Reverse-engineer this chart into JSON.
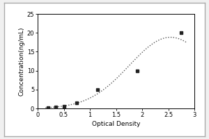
{
  "x_data": [
    0.2,
    0.35,
    0.5,
    0.75,
    1.15,
    1.9,
    2.75
  ],
  "y_data": [
    0.2,
    0.4,
    0.6,
    1.5,
    5.0,
    10.0,
    20.0
  ],
  "xlabel": "Optical Density",
  "ylabel": "Concentration(ng/mL)",
  "xlim": [
    0,
    3
  ],
  "ylim": [
    0,
    25
  ],
  "xticks": [
    0,
    0.5,
    1.0,
    1.5,
    2.0,
    2.5,
    3.0
  ],
  "yticks": [
    0,
    5,
    10,
    15,
    20,
    25
  ],
  "line_color": "#555555",
  "marker_color": "#222222",
  "outer_bg": "#e8e8e8",
  "plot_bg": "#ffffff",
  "label_fontsize": 6.5,
  "tick_fontsize": 6
}
